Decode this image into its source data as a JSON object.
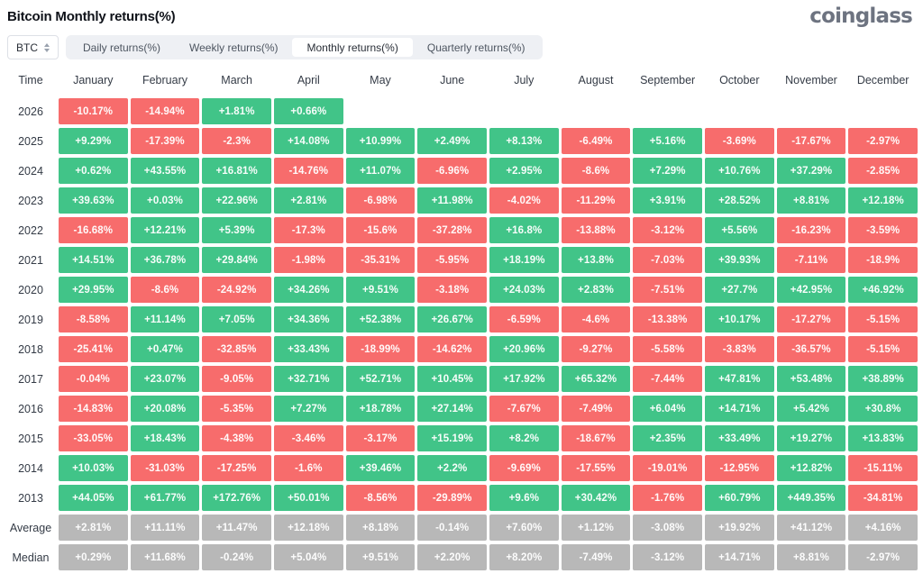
{
  "header": {
    "title": "Bitcoin Monthly returns(%)",
    "brand": "coinglass"
  },
  "controls": {
    "symbol_select": {
      "value": "BTC",
      "icon": "updown-caret-icon"
    },
    "tabs": [
      {
        "label": "Daily returns(%)",
        "active": false
      },
      {
        "label": "Weekly returns(%)",
        "active": false
      },
      {
        "label": "Monthly returns(%)",
        "active": true
      },
      {
        "label": "Quarterly returns(%)",
        "active": false
      }
    ]
  },
  "colors": {
    "positive": "#41c488",
    "negative": "#f76c6c",
    "summary": "#b8b8b8"
  },
  "table": {
    "columns": [
      "Time",
      "January",
      "February",
      "March",
      "April",
      "May",
      "June",
      "July",
      "August",
      "September",
      "October",
      "November",
      "December"
    ],
    "rows": [
      {
        "label": "2026",
        "type": "year",
        "cells": [
          "-10.17%",
          "-14.94%",
          "+1.81%",
          "+0.66%",
          "",
          "",
          "",
          "",
          "",
          "",
          "",
          ""
        ]
      },
      {
        "label": "2025",
        "type": "year",
        "cells": [
          "+9.29%",
          "-17.39%",
          "-2.3%",
          "+14.08%",
          "+10.99%",
          "+2.49%",
          "+8.13%",
          "-6.49%",
          "+5.16%",
          "-3.69%",
          "-17.67%",
          "-2.97%"
        ]
      },
      {
        "label": "2024",
        "type": "year",
        "cells": [
          "+0.62%",
          "+43.55%",
          "+16.81%",
          "-14.76%",
          "+11.07%",
          "-6.96%",
          "+2.95%",
          "-8.6%",
          "+7.29%",
          "+10.76%",
          "+37.29%",
          "-2.85%"
        ]
      },
      {
        "label": "2023",
        "type": "year",
        "cells": [
          "+39.63%",
          "+0.03%",
          "+22.96%",
          "+2.81%",
          "-6.98%",
          "+11.98%",
          "-4.02%",
          "-11.29%",
          "+3.91%",
          "+28.52%",
          "+8.81%",
          "+12.18%"
        ]
      },
      {
        "label": "2022",
        "type": "year",
        "cells": [
          "-16.68%",
          "+12.21%",
          "+5.39%",
          "-17.3%",
          "-15.6%",
          "-37.28%",
          "+16.8%",
          "-13.88%",
          "-3.12%",
          "+5.56%",
          "-16.23%",
          "-3.59%"
        ]
      },
      {
        "label": "2021",
        "type": "year",
        "cells": [
          "+14.51%",
          "+36.78%",
          "+29.84%",
          "-1.98%",
          "-35.31%",
          "-5.95%",
          "+18.19%",
          "+13.8%",
          "-7.03%",
          "+39.93%",
          "-7.11%",
          "-18.9%"
        ]
      },
      {
        "label": "2020",
        "type": "year",
        "cells": [
          "+29.95%",
          "-8.6%",
          "-24.92%",
          "+34.26%",
          "+9.51%",
          "-3.18%",
          "+24.03%",
          "+2.83%",
          "-7.51%",
          "+27.7%",
          "+42.95%",
          "+46.92%"
        ]
      },
      {
        "label": "2019",
        "type": "year",
        "cells": [
          "-8.58%",
          "+11.14%",
          "+7.05%",
          "+34.36%",
          "+52.38%",
          "+26.67%",
          "-6.59%",
          "-4.6%",
          "-13.38%",
          "+10.17%",
          "-17.27%",
          "-5.15%"
        ]
      },
      {
        "label": "2018",
        "type": "year",
        "cells": [
          "-25.41%",
          "+0.47%",
          "-32.85%",
          "+33.43%",
          "-18.99%",
          "-14.62%",
          "+20.96%",
          "-9.27%",
          "-5.58%",
          "-3.83%",
          "-36.57%",
          "-5.15%"
        ]
      },
      {
        "label": "2017",
        "type": "year",
        "cells": [
          "-0.04%",
          "+23.07%",
          "-9.05%",
          "+32.71%",
          "+52.71%",
          "+10.45%",
          "+17.92%",
          "+65.32%",
          "-7.44%",
          "+47.81%",
          "+53.48%",
          "+38.89%"
        ]
      },
      {
        "label": "2016",
        "type": "year",
        "cells": [
          "-14.83%",
          "+20.08%",
          "-5.35%",
          "+7.27%",
          "+18.78%",
          "+27.14%",
          "-7.67%",
          "-7.49%",
          "+6.04%",
          "+14.71%",
          "+5.42%",
          "+30.8%"
        ]
      },
      {
        "label": "2015",
        "type": "year",
        "cells": [
          "-33.05%",
          "+18.43%",
          "-4.38%",
          "-3.46%",
          "-3.17%",
          "+15.19%",
          "+8.2%",
          "-18.67%",
          "+2.35%",
          "+33.49%",
          "+19.27%",
          "+13.83%"
        ]
      },
      {
        "label": "2014",
        "type": "year",
        "cells": [
          "+10.03%",
          "-31.03%",
          "-17.25%",
          "-1.6%",
          "+39.46%",
          "+2.2%",
          "-9.69%",
          "-17.55%",
          "-19.01%",
          "-12.95%",
          "+12.82%",
          "-15.11%"
        ]
      },
      {
        "label": "2013",
        "type": "year",
        "cells": [
          "+44.05%",
          "+61.77%",
          "+172.76%",
          "+50.01%",
          "-8.56%",
          "-29.89%",
          "+9.6%",
          "+30.42%",
          "-1.76%",
          "+60.79%",
          "+449.35%",
          "-34.81%"
        ]
      },
      {
        "label": "Average",
        "type": "summary",
        "cells": [
          "+2.81%",
          "+11.11%",
          "+11.47%",
          "+12.18%",
          "+8.18%",
          "-0.14%",
          "+7.60%",
          "+1.12%",
          "-3.08%",
          "+19.92%",
          "+41.12%",
          "+4.16%"
        ]
      },
      {
        "label": "Median",
        "type": "summary",
        "cells": [
          "+0.29%",
          "+11.68%",
          "-0.24%",
          "+5.04%",
          "+9.51%",
          "+2.20%",
          "+8.20%",
          "-7.49%",
          "-3.12%",
          "+14.71%",
          "+8.81%",
          "-2.97%"
        ]
      }
    ]
  },
  "chart_data": {
    "type": "heatmap",
    "title": "Bitcoin Monthly returns(%)",
    "unit": "%",
    "x_categories": [
      "January",
      "February",
      "March",
      "April",
      "May",
      "June",
      "July",
      "August",
      "September",
      "October",
      "November",
      "December"
    ],
    "y_categories": [
      "2026",
      "2025",
      "2024",
      "2023",
      "2022",
      "2021",
      "2020",
      "2019",
      "2018",
      "2017",
      "2016",
      "2015",
      "2014",
      "2013",
      "Average",
      "Median"
    ],
    "values": [
      [
        -10.17,
        -14.94,
        1.81,
        0.66,
        null,
        null,
        null,
        null,
        null,
        null,
        null,
        null
      ],
      [
        9.29,
        -17.39,
        -2.3,
        14.08,
        10.99,
        2.49,
        8.13,
        -6.49,
        5.16,
        -3.69,
        -17.67,
        -2.97
      ],
      [
        0.62,
        43.55,
        16.81,
        -14.76,
        11.07,
        -6.96,
        2.95,
        -8.6,
        7.29,
        10.76,
        37.29,
        -2.85
      ],
      [
        39.63,
        0.03,
        22.96,
        2.81,
        -6.98,
        11.98,
        -4.02,
        -11.29,
        3.91,
        28.52,
        8.81,
        12.18
      ],
      [
        -16.68,
        12.21,
        5.39,
        -17.3,
        -15.6,
        -37.28,
        16.8,
        -13.88,
        -3.12,
        5.56,
        -16.23,
        -3.59
      ],
      [
        14.51,
        36.78,
        29.84,
        -1.98,
        -35.31,
        -5.95,
        18.19,
        13.8,
        -7.03,
        39.93,
        -7.11,
        -18.9
      ],
      [
        29.95,
        -8.6,
        -24.92,
        34.26,
        9.51,
        -3.18,
        24.03,
        2.83,
        -7.51,
        27.7,
        42.95,
        46.92
      ],
      [
        -8.58,
        11.14,
        7.05,
        34.36,
        52.38,
        26.67,
        -6.59,
        -4.6,
        -13.38,
        10.17,
        -17.27,
        -5.15
      ],
      [
        -25.41,
        0.47,
        -32.85,
        33.43,
        -18.99,
        -14.62,
        20.96,
        -9.27,
        -5.58,
        -3.83,
        -36.57,
        -5.15
      ],
      [
        -0.04,
        23.07,
        -9.05,
        32.71,
        52.71,
        10.45,
        17.92,
        65.32,
        -7.44,
        47.81,
        53.48,
        38.89
      ],
      [
        -14.83,
        20.08,
        -5.35,
        7.27,
        18.78,
        27.14,
        -7.67,
        -7.49,
        6.04,
        14.71,
        5.42,
        30.8
      ],
      [
        -33.05,
        18.43,
        -4.38,
        -3.46,
        -3.17,
        15.19,
        8.2,
        -18.67,
        2.35,
        33.49,
        19.27,
        13.83
      ],
      [
        10.03,
        -31.03,
        -17.25,
        -1.6,
        39.46,
        2.2,
        -9.69,
        -17.55,
        -19.01,
        -12.95,
        12.82,
        -15.11
      ],
      [
        44.05,
        61.77,
        172.76,
        50.01,
        -8.56,
        -29.89,
        9.6,
        30.42,
        -1.76,
        60.79,
        449.35,
        -34.81
      ],
      [
        2.81,
        11.11,
        11.47,
        12.18,
        8.18,
        -0.14,
        7.6,
        1.12,
        -3.08,
        19.92,
        41.12,
        4.16
      ],
      [
        0.29,
        11.68,
        -0.24,
        5.04,
        9.51,
        2.2,
        8.2,
        -7.49,
        -3.12,
        14.71,
        8.81,
        -2.97
      ]
    ],
    "color_rule": "positive=green, negative=red, Average/Median rows=gray",
    "legend_position": "none",
    "grid": false
  }
}
